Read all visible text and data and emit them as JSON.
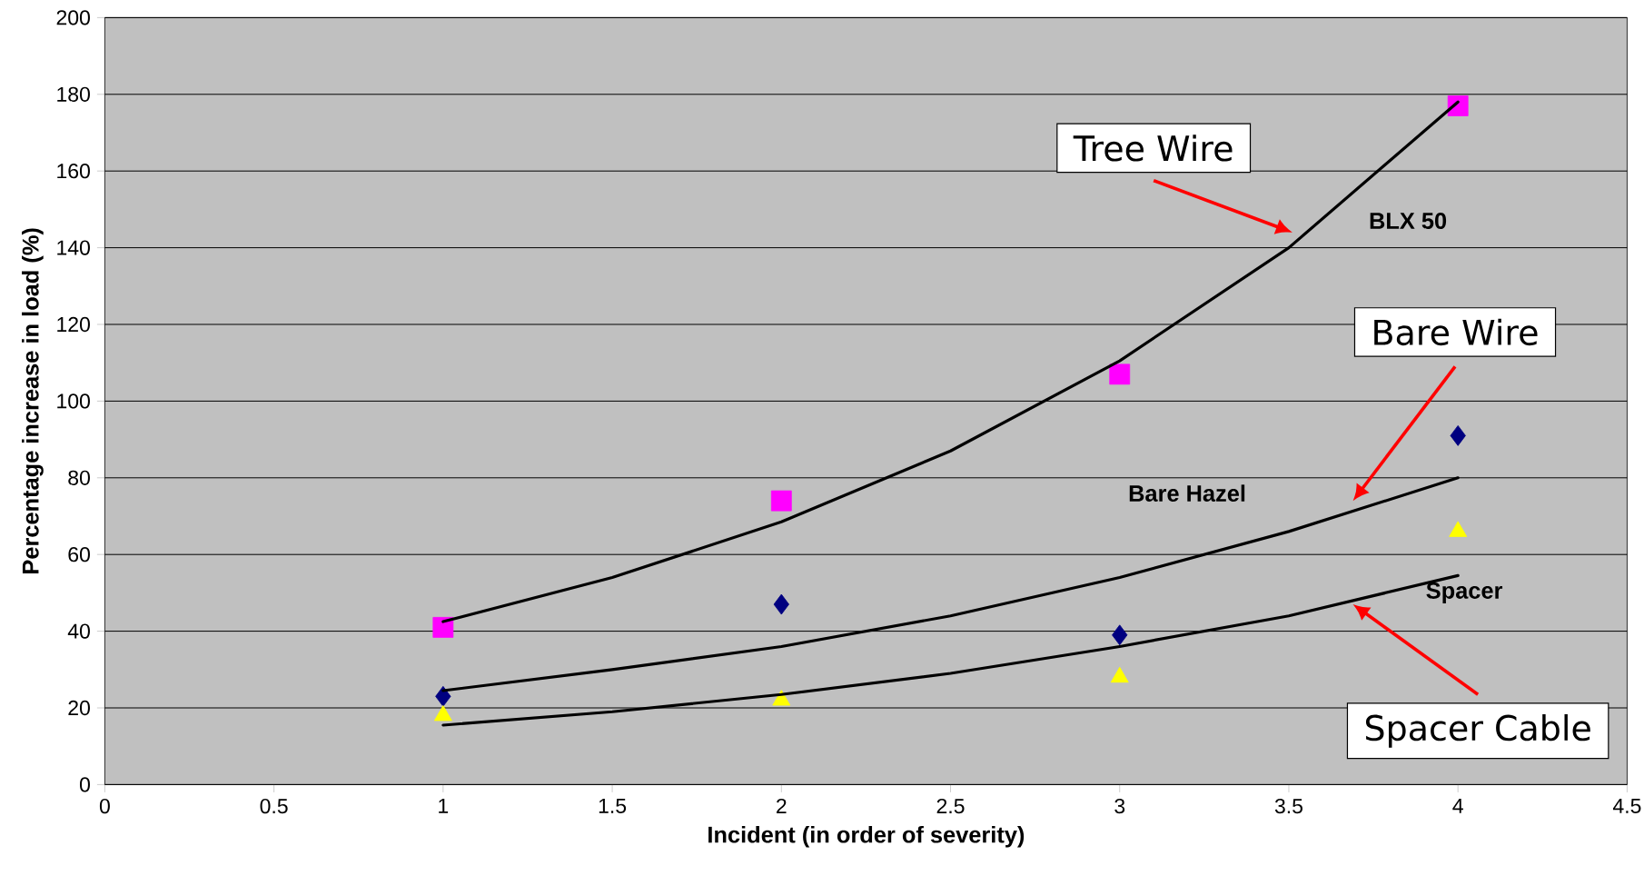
{
  "chart_data": {
    "type": "scatter",
    "xlabel": "Incident (in order of severity)",
    "ylabel": "Percentage increase in load (%)",
    "xlim": [
      0,
      4.5
    ],
    "ylim": [
      0,
      200
    ],
    "xticks": [
      0,
      0.5,
      1,
      1.5,
      2,
      2.5,
      3,
      3.5,
      4,
      4.5
    ],
    "yticks": [
      0,
      20,
      40,
      60,
      80,
      100,
      120,
      140,
      160,
      180,
      200
    ],
    "grid": "y",
    "x": [
      1,
      2,
      3,
      4
    ],
    "series": [
      {
        "marker": "square",
        "color": "#ff00ff",
        "values": [
          41,
          74,
          107,
          177
        ]
      },
      {
        "marker": "diamond",
        "color": "#000080",
        "values": [
          23,
          47,
          39,
          91
        ]
      },
      {
        "marker": "triangle",
        "color": "#ffff00",
        "values": [
          18,
          22,
          28,
          66
        ]
      },
      {
        "type": "line",
        "marker": "none",
        "color": "#000000",
        "x": [
          1,
          1.5,
          2,
          2.5,
          3,
          3.5,
          4
        ],
        "values": [
          42.5,
          54,
          68.5,
          87,
          110.5,
          140,
          178
        ]
      },
      {
        "type": "line",
        "marker": "none",
        "color": "#000000",
        "x": [
          1,
          1.5,
          2,
          2.5,
          3,
          3.5,
          4
        ],
        "values": [
          24.5,
          30,
          36,
          44,
          54,
          66,
          80
        ]
      },
      {
        "type": "line",
        "marker": "none",
        "color": "#000000",
        "x": [
          1,
          1.5,
          2,
          2.5,
          3,
          3.5,
          4
        ],
        "values": [
          15.5,
          19,
          23.5,
          29,
          36,
          44,
          54.5
        ]
      }
    ],
    "annotations": [
      "Tree Wire",
      "Bare Wire",
      "Spacer Cable",
      "BLX 50",
      "Bare Hazel",
      "Spacer"
    ]
  }
}
